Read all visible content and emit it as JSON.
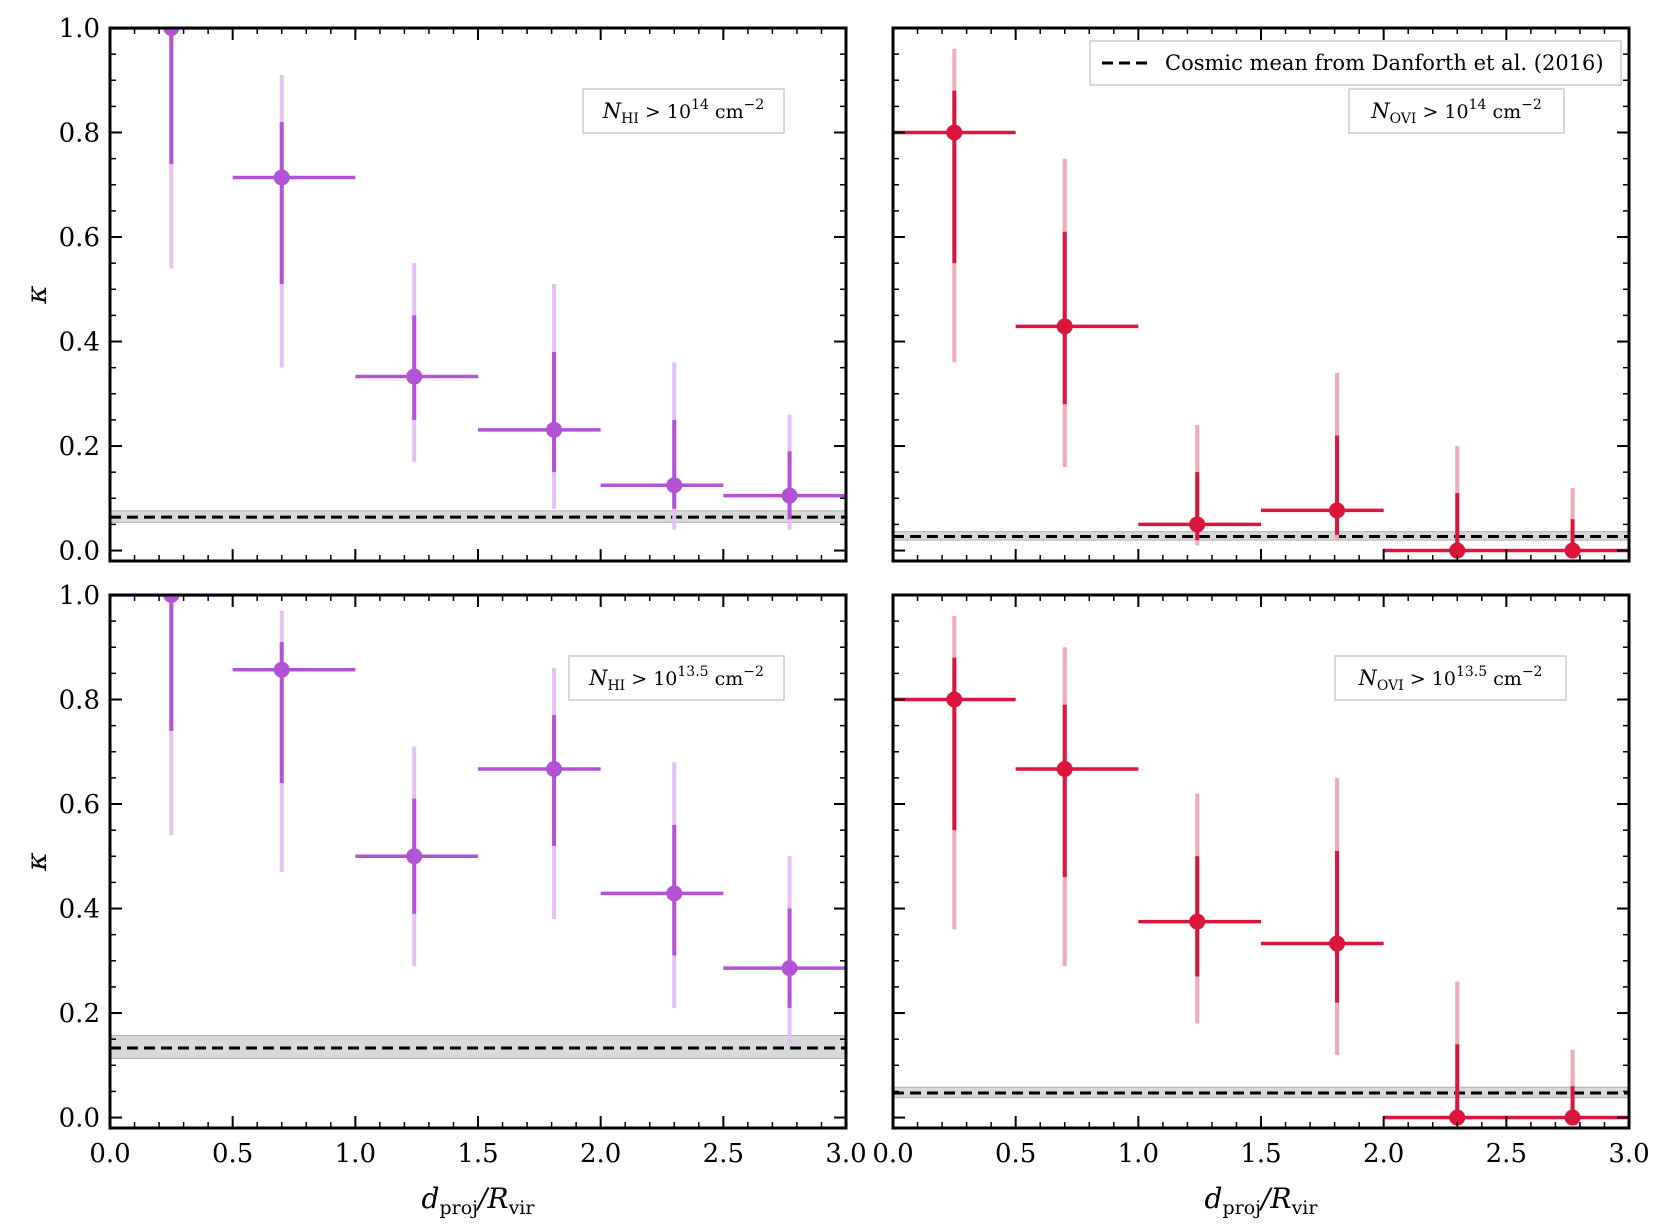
{
  "figure": {
    "title": ""
  },
  "colors": {
    "hi": "#b452d6",
    "hi_light": "#e6c0f1",
    "ovi": "#db153c",
    "ovi_light": "#f2a9b8",
    "cosmic": "#000000",
    "cosmic_band": "#d9d9d9"
  },
  "legend": {
    "label": "Cosmic mean from Danforth et al. (2016)"
  },
  "chart_data": [
    {
      "type": "scatter",
      "panel": "top-left",
      "ion": "HI",
      "label_base": "N",
      "label_sub": "HI",
      "label_gt": " > 10",
      "label_exp": "14",
      "label_unit": " cm",
      "label_unit_exp": "−2",
      "xlabel_d": "d",
      "xlabel_proj": "proj",
      "xlabel_slash": "/R",
      "xlabel_vir": "vir",
      "ylabel": "κ",
      "xlim": [
        0,
        3
      ],
      "ylim": [
        -0.02,
        1.0
      ],
      "xticks": [
        "0.0",
        "0.5",
        "1.0",
        "1.5",
        "2.0",
        "2.5",
        "3.0"
      ],
      "yticks": [
        "0.0",
        "0.2",
        "0.4",
        "0.6",
        "0.8",
        "1.0"
      ],
      "cosmic_mean": 0.064,
      "cosmic_band": [
        0.054,
        0.076
      ],
      "points": [
        {
          "x": 0.25,
          "y": 1.0,
          "xerr": [
            0.25,
            0.25
          ],
          "y1": [
            0.74,
            1.0
          ],
          "y2": [
            0.54,
            1.0
          ]
        },
        {
          "x": 0.7,
          "y": 0.714,
          "xerr": [
            0.2,
            0.3
          ],
          "y1": [
            0.51,
            0.82
          ],
          "y2": [
            0.35,
            0.91
          ]
        },
        {
          "x": 1.24,
          "y": 0.333,
          "xerr": [
            0.24,
            0.26
          ],
          "y1": [
            0.25,
            0.45
          ],
          "y2": [
            0.17,
            0.55
          ]
        },
        {
          "x": 1.81,
          "y": 0.231,
          "xerr": [
            0.31,
            0.19
          ],
          "y1": [
            0.15,
            0.38
          ],
          "y2": [
            0.08,
            0.51
          ]
        },
        {
          "x": 2.3,
          "y": 0.125,
          "xerr": [
            0.3,
            0.2
          ],
          "y1": [
            0.08,
            0.25
          ],
          "y2": [
            0.04,
            0.36
          ]
        },
        {
          "x": 2.77,
          "y": 0.105,
          "xerr": [
            0.27,
            0.23
          ],
          "y1": [
            0.06,
            0.19
          ],
          "y2": [
            0.04,
            0.26
          ]
        }
      ]
    },
    {
      "type": "scatter",
      "panel": "top-right",
      "ion": "OVI",
      "label_base": "N",
      "label_sub": "OVI",
      "label_gt": " > 10",
      "label_exp": "14",
      "label_unit": " cm",
      "label_unit_exp": "−2",
      "xlabel_d": "d",
      "xlabel_proj": "proj",
      "xlabel_slash": "/R",
      "xlabel_vir": "vir",
      "ylabel": "",
      "xlim": [
        0,
        3
      ],
      "ylim": [
        -0.02,
        1.0
      ],
      "xticks": [
        "0.0",
        "0.5",
        "1.0",
        "1.5",
        "2.0",
        "2.5",
        "3.0"
      ],
      "yticks": [],
      "cosmic_mean": 0.027,
      "cosmic_band": [
        0.02,
        0.036
      ],
      "points": [
        {
          "x": 0.25,
          "y": 0.8,
          "xerr": [
            0.25,
            0.25
          ],
          "y1": [
            0.55,
            0.88
          ],
          "y2": [
            0.36,
            0.96
          ]
        },
        {
          "x": 0.7,
          "y": 0.429,
          "xerr": [
            0.2,
            0.3
          ],
          "y1": [
            0.28,
            0.61
          ],
          "y2": [
            0.16,
            0.75
          ]
        },
        {
          "x": 1.24,
          "y": 0.05,
          "xerr": [
            0.24,
            0.26
          ],
          "y1": [
            0.02,
            0.15
          ],
          "y2": [
            0.01,
            0.24
          ]
        },
        {
          "x": 1.81,
          "y": 0.077,
          "xerr": [
            0.31,
            0.19
          ],
          "y1": [
            0.03,
            0.22
          ],
          "y2": [
            0.02,
            0.34
          ]
        },
        {
          "x": 2.3,
          "y": 0.0,
          "xerr": [
            0.3,
            0.2
          ],
          "y1": [
            0.0,
            0.11
          ],
          "y2": [
            0.0,
            0.2
          ]
        },
        {
          "x": 2.77,
          "y": 0.0,
          "xerr": [
            0.27,
            0.23
          ],
          "y1": [
            0.0,
            0.06
          ],
          "y2": [
            0.0,
            0.12
          ]
        }
      ]
    },
    {
      "type": "scatter",
      "panel": "bottom-left",
      "ion": "HI",
      "label_base": "N",
      "label_sub": "HI",
      "label_gt": " > 10",
      "label_exp": "13.5",
      "label_unit": " cm",
      "label_unit_exp": "−2",
      "xlabel_d": "d",
      "xlabel_proj": "proj",
      "xlabel_slash": "/R",
      "xlabel_vir": "vir",
      "ylabel": "κ",
      "xlim": [
        0,
        3
      ],
      "ylim": [
        -0.02,
        1.0
      ],
      "xticks": [
        "0.0",
        "0.5",
        "1.0",
        "1.5",
        "2.0",
        "2.5",
        "3.0"
      ],
      "yticks": [
        "0.0",
        "0.2",
        "0.4",
        "0.6",
        "0.8",
        "1.0"
      ],
      "cosmic_mean": 0.133,
      "cosmic_band": [
        0.113,
        0.157
      ],
      "points": [
        {
          "x": 0.25,
          "y": 1.0,
          "xerr": [
            0.25,
            0.25
          ],
          "y1": [
            0.74,
            1.0
          ],
          "y2": [
            0.54,
            1.0
          ]
        },
        {
          "x": 0.7,
          "y": 0.857,
          "xerr": [
            0.2,
            0.3
          ],
          "y1": [
            0.64,
            0.91
          ],
          "y2": [
            0.47,
            0.97
          ]
        },
        {
          "x": 1.24,
          "y": 0.5,
          "xerr": [
            0.24,
            0.26
          ],
          "y1": [
            0.39,
            0.61
          ],
          "y2": [
            0.29,
            0.71
          ]
        },
        {
          "x": 1.81,
          "y": 0.667,
          "xerr": [
            0.31,
            0.19
          ],
          "y1": [
            0.52,
            0.77
          ],
          "y2": [
            0.38,
            0.86
          ]
        },
        {
          "x": 2.3,
          "y": 0.429,
          "xerr": [
            0.3,
            0.2
          ],
          "y1": [
            0.31,
            0.56
          ],
          "y2": [
            0.21,
            0.68
          ]
        },
        {
          "x": 2.77,
          "y": 0.286,
          "xerr": [
            0.27,
            0.23
          ],
          "y1": [
            0.21,
            0.4
          ],
          "y2": [
            0.14,
            0.5
          ]
        }
      ]
    },
    {
      "type": "scatter",
      "panel": "bottom-right",
      "ion": "OVI",
      "label_base": "N",
      "label_sub": "OVI",
      "label_gt": " > 10",
      "label_exp": "13.5",
      "label_unit": " cm",
      "label_unit_exp": "−2",
      "xlabel_d": "d",
      "xlabel_proj": "proj",
      "xlabel_slash": "/R",
      "xlabel_vir": "vir",
      "ylabel": "",
      "xlim": [
        0,
        3
      ],
      "ylim": [
        -0.02,
        1.0
      ],
      "xticks": [
        "0.0",
        "0.5",
        "1.0",
        "1.5",
        "2.0",
        "2.5",
        "3.0"
      ],
      "yticks": [],
      "cosmic_mean": 0.047,
      "cosmic_band": [
        0.038,
        0.058
      ],
      "points": [
        {
          "x": 0.25,
          "y": 0.8,
          "xerr": [
            0.25,
            0.25
          ],
          "y1": [
            0.55,
            0.88
          ],
          "y2": [
            0.36,
            0.96
          ]
        },
        {
          "x": 0.7,
          "y": 0.667,
          "xerr": [
            0.2,
            0.3
          ],
          "y1": [
            0.46,
            0.79
          ],
          "y2": [
            0.29,
            0.9
          ]
        },
        {
          "x": 1.24,
          "y": 0.375,
          "xerr": [
            0.24,
            0.26
          ],
          "y1": [
            0.27,
            0.5
          ],
          "y2": [
            0.18,
            0.62
          ]
        },
        {
          "x": 1.81,
          "y": 0.333,
          "xerr": [
            0.31,
            0.19
          ],
          "y1": [
            0.22,
            0.51
          ],
          "y2": [
            0.12,
            0.65
          ]
        },
        {
          "x": 2.3,
          "y": 0.0,
          "xerr": [
            0.3,
            0.2
          ],
          "y1": [
            0.0,
            0.14
          ],
          "y2": [
            0.0,
            0.26
          ]
        },
        {
          "x": 2.77,
          "y": 0.0,
          "xerr": [
            0.27,
            0.23
          ],
          "y1": [
            0.0,
            0.06
          ],
          "y2": [
            0.0,
            0.13
          ]
        }
      ]
    }
  ]
}
